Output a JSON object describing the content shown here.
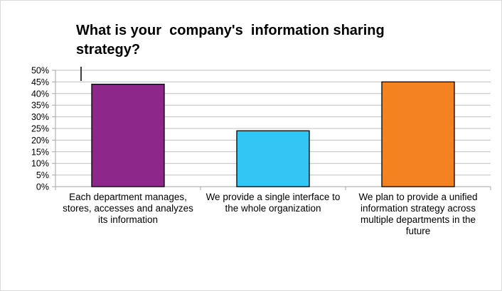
{
  "chart_data": {
    "type": "bar",
    "title": "What is your  company's  information sharing strategy?",
    "xlabel": "",
    "ylabel": "",
    "categories": [
      "Each department manages, stores, accesses and analyzes its information",
      "We provide a single interface to the whole organization",
      "We plan to provide a unified information strategy across multiple departments in the future"
    ],
    "values": [
      0.44,
      0.24,
      0.45
    ],
    "colors": [
      "#8e278a",
      "#33c5f3",
      "#f58220"
    ],
    "ylim": [
      0,
      0.5
    ],
    "yticks": [
      "0%",
      "5%",
      "10%",
      "15%",
      "20%",
      "25%",
      "30%",
      "35%",
      "40%",
      "45%",
      "50%"
    ],
    "grid": true,
    "legend": "none"
  }
}
